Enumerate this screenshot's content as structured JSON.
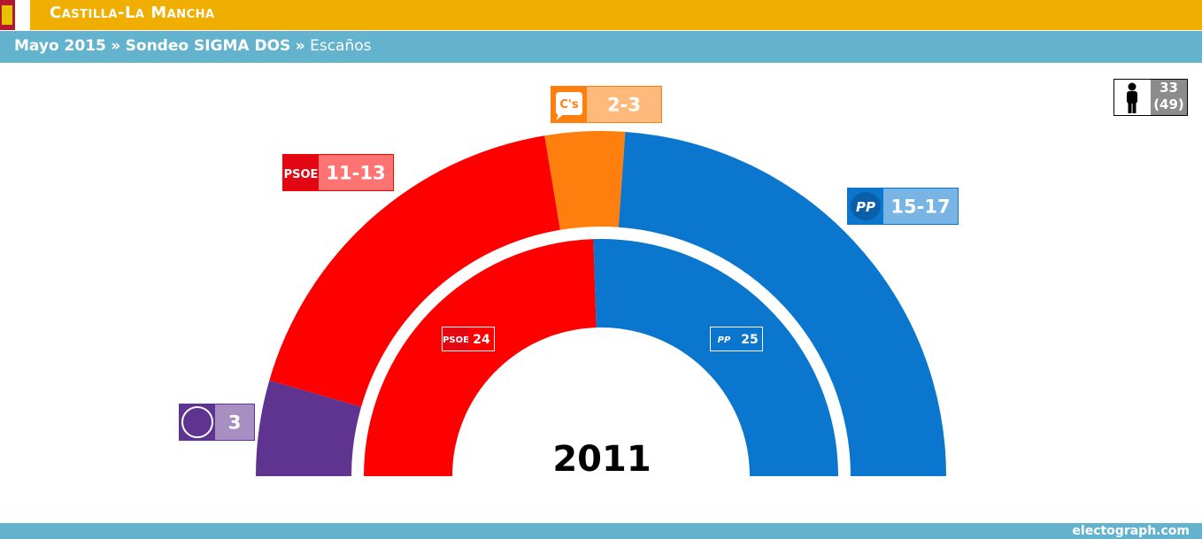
{
  "header": {
    "region": "Castilla-La Mancha",
    "crumb_date": "Mayo 2015",
    "crumb_sep": "»",
    "crumb_poll": "Sondeo SIGMA DOS",
    "crumb_metric": "Escaños"
  },
  "majority": {
    "seats": "33",
    "total": "(49)"
  },
  "footer": {
    "brand": "electograph.com"
  },
  "colors": {
    "podemos": "#5f3490",
    "psoe": "#ff0000",
    "cs": "#ff7f0e",
    "pp": "#0a76cd",
    "header": "#f0ae00",
    "subheader": "#63b3cf"
  },
  "chart_data": {
    "type": "parliament-donut",
    "outer": {
      "label": "Sondeo SIGMA DOS",
      "series": [
        {
          "name": "Podemos",
          "value": 3,
          "label": "3",
          "logo": "",
          "color": "#5f3490"
        },
        {
          "name": "PSOE",
          "value": 12,
          "label": "11-13",
          "logo": "PSOE",
          "color": "#ff0000"
        },
        {
          "name": "C's",
          "value": 2.5,
          "label": "2-3",
          "logo": "C's",
          "color": "#ff7f0e"
        },
        {
          "name": "PP",
          "value": 16,
          "label": "15-17",
          "logo": "PP",
          "color": "#0a76cd"
        }
      ]
    },
    "inner": {
      "year": "2011",
      "series": [
        {
          "name": "PSOE",
          "value": 24,
          "label": "24",
          "logo": "PSOE",
          "color": "#ff0000"
        },
        {
          "name": "PP",
          "value": 25,
          "label": "25",
          "logo": "PP",
          "color": "#0a76cd"
        }
      ]
    }
  }
}
